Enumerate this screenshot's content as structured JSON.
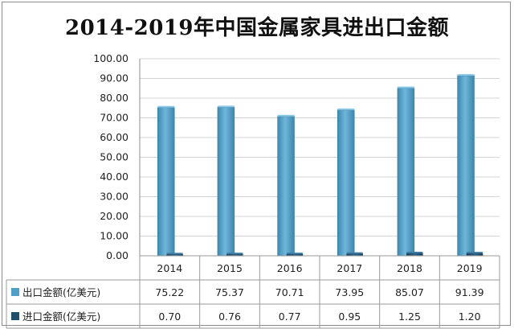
{
  "chart_data": {
    "type": "bar",
    "title": "2014-2019年中国金属家具进出口金额",
    "categories": [
      "2014",
      "2015",
      "2016",
      "2017",
      "2018",
      "2019"
    ],
    "series": [
      {
        "name": "出口金额(亿美元)",
        "values": [
          75.22,
          75.37,
          70.71,
          73.95,
          85.07,
          91.39
        ],
        "labels": [
          "75.22",
          "75.37",
          "70.71",
          "73.95",
          "85.07",
          "91.39"
        ],
        "color": "#4f9fc6"
      },
      {
        "name": "进口金额(亿美元)",
        "values": [
          0.7,
          0.76,
          0.77,
          0.95,
          1.25,
          1.2
        ],
        "labels": [
          "0.70",
          "0.76",
          "0.77",
          "0.95",
          "1.25",
          "1.20"
        ],
        "color": "#1f4f6f"
      }
    ],
    "ylim": [
      0,
      100
    ],
    "yticks": [
      "0.00",
      "10.00",
      "20.00",
      "30.00",
      "40.00",
      "50.00",
      "60.00",
      "70.00",
      "80.00",
      "90.00",
      "100.00"
    ],
    "grid": true,
    "data_table": true
  }
}
